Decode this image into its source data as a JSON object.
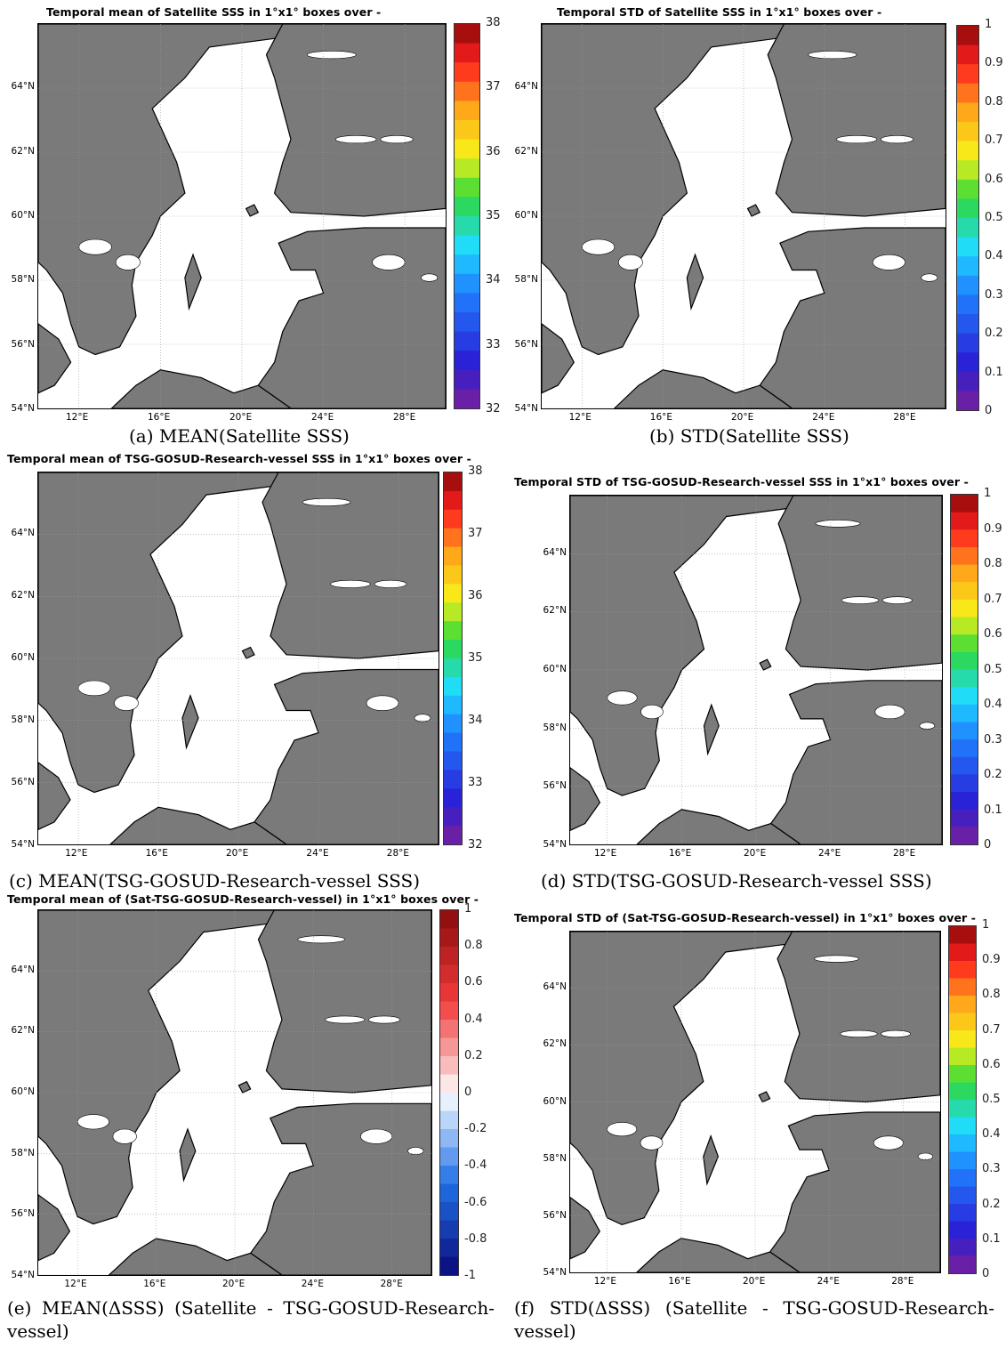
{
  "panels": [
    {
      "title": "Temporal mean of Satellite SSS in 1°x1° boxes over -",
      "caption": "(a) MEAN(Satellite SSS)",
      "colorbar": {
        "min": 32,
        "max": 38,
        "labels": [
          "38",
          "37",
          "36",
          "35",
          "34",
          "33",
          "32"
        ],
        "scheme": "jet"
      }
    },
    {
      "title": "Temporal STD of Satellite SSS in 1°x1° boxes over -",
      "caption": "(b) STD(Satellite SSS)",
      "colorbar": {
        "min": 0,
        "max": 1,
        "labels": [
          "1",
          "0.9",
          "0.8",
          "0.7",
          "0.6",
          "0.5",
          "0.4",
          "0.3",
          "0.2",
          "0.1",
          "0"
        ],
        "scheme": "jet"
      }
    },
    {
      "title": "Temporal mean of TSG-GOSUD-Research-vessel SSS in 1°x1° boxes over -",
      "caption": "(c) MEAN(TSG-GOSUD-Research-vessel SSS)",
      "colorbar": {
        "min": 32,
        "max": 38,
        "labels": [
          "38",
          "37",
          "36",
          "35",
          "34",
          "33",
          "32"
        ],
        "scheme": "jet"
      }
    },
    {
      "title": "Temporal STD of TSG-GOSUD-Research-vessel SSS in 1°x1° boxes over -",
      "caption": "(d) STD(TSG-GOSUD-Research-vessel SSS)",
      "colorbar": {
        "min": 0,
        "max": 1,
        "labels": [
          "1",
          "0.9",
          "0.8",
          "0.7",
          "0.6",
          "0.5",
          "0.4",
          "0.3",
          "0.2",
          "0.1",
          "0"
        ],
        "scheme": "jet"
      }
    },
    {
      "title": "Temporal mean of (Sat-TSG-GOSUD-Research-vessel) in 1°x1° boxes over -",
      "caption": "(e) MEAN(ΔSSS) (Satellite - TSG-GOSUD-Research-vessel)",
      "colorbar": {
        "min": -1,
        "max": 1,
        "labels": [
          "1",
          "0.8",
          "0.6",
          "0.4",
          "0.2",
          "0",
          "-0.2",
          "-0.4",
          "-0.6",
          "-0.8",
          "-1"
        ],
        "scheme": "diverging"
      }
    },
    {
      "title": "Temporal STD of (Sat-TSG-GOSUD-Research-vessel) in 1°x1° boxes over -",
      "caption": "(f) STD(ΔSSS) (Satellite - TSG-GOSUD-Research-vessel)",
      "colorbar": {
        "min": 0,
        "max": 1,
        "labels": [
          "1",
          "0.9",
          "0.8",
          "0.7",
          "0.6",
          "0.5",
          "0.4",
          "0.3",
          "0.2",
          "0.1",
          "0"
        ],
        "scheme": "jet"
      }
    }
  ],
  "axes": {
    "lat_labels": [
      "64°N",
      "62°N",
      "60°N",
      "58°N",
      "56°N",
      "54°N"
    ],
    "lat_values": [
      64,
      62,
      60,
      58,
      56,
      54
    ],
    "lon_labels": [
      "12°E",
      "16°E",
      "20°E",
      "24°E",
      "28°E"
    ],
    "lon_values": [
      12,
      16,
      20,
      24,
      28
    ],
    "lon_range": [
      10,
      30
    ],
    "lat_range": [
      54,
      66
    ]
  },
  "colors": {
    "land": "#7a7a7a",
    "sea": "#ffffff",
    "coast": "#000000",
    "grid": "#9a9a9a"
  }
}
